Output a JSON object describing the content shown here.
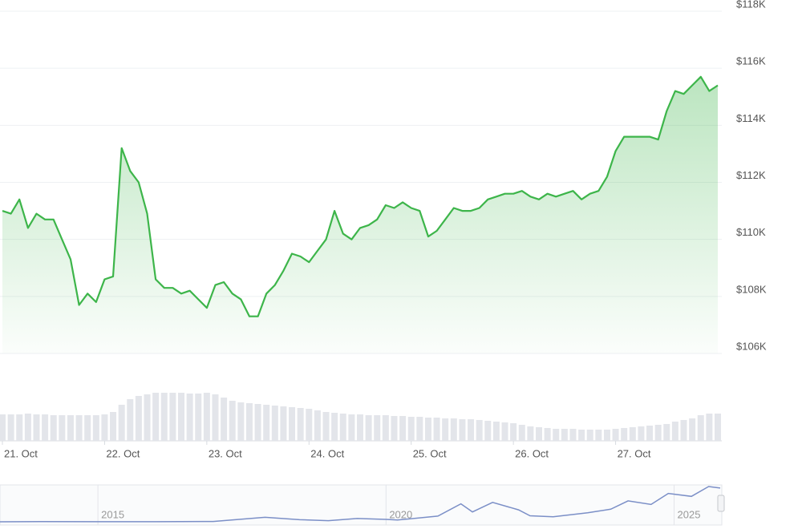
{
  "chart_data": [
    {
      "type": "line",
      "x": [
        0,
        2,
        4,
        6,
        8,
        10,
        12,
        14,
        16,
        18,
        20,
        22,
        24,
        26,
        28,
        30,
        32,
        34,
        36,
        38,
        40,
        42,
        44,
        46,
        48,
        50,
        52,
        54,
        56,
        58,
        60,
        62,
        64,
        66,
        68,
        70,
        72,
        74,
        76,
        78,
        80,
        82,
        84,
        86,
        88,
        90,
        92,
        94,
        96,
        98,
        100,
        102,
        104,
        106,
        108,
        110,
        112,
        114,
        116,
        118,
        120,
        122,
        124,
        126,
        128,
        130,
        132,
        134,
        136,
        138,
        140,
        142,
        144,
        146,
        148,
        150,
        152,
        154,
        156,
        158,
        160,
        162,
        164,
        166,
        168
      ],
      "values": [
        111000,
        110900,
        111400,
        110400,
        110900,
        110700,
        110700,
        110000,
        109300,
        107700,
        108100,
        107800,
        108600,
        108700,
        113200,
        112400,
        112000,
        110900,
        108600,
        108300,
        108300,
        108100,
        108200,
        107900,
        107600,
        108400,
        108500,
        108100,
        107900,
        107300,
        107300,
        108100,
        108400,
        108900,
        109500,
        109400,
        109200,
        109600,
        110000,
        111000,
        110200,
        110000,
        110400,
        110500,
        110700,
        111200,
        111100,
        111300,
        111100,
        111000,
        110100,
        110300,
        110700,
        111100,
        111000,
        111000,
        111100,
        111400,
        111500,
        111600,
        111600,
        111700,
        111500,
        111400,
        111600,
        111500,
        111600,
        111700,
        111400,
        111600,
        111700,
        112200,
        113100,
        113600,
        113600,
        113600,
        113600,
        113500,
        114500,
        115200,
        115100,
        115400,
        115700,
        115200,
        115400
      ],
      "color": "#3db54a",
      "xlim": [
        0,
        168
      ],
      "xticks": [
        {
          "value": 0,
          "label": "21. Oct"
        },
        {
          "value": 24,
          "label": "22. Oct"
        },
        {
          "value": 48,
          "label": "23. Oct"
        },
        {
          "value": 72,
          "label": "24. Oct"
        },
        {
          "value": 96,
          "label": "25. Oct"
        },
        {
          "value": 120,
          "label": "26. Oct"
        },
        {
          "value": 144,
          "label": "27. Oct"
        }
      ],
      "ylim": [
        106000,
        118000
      ],
      "yticks": [
        {
          "value": 106000,
          "label": "$106K"
        },
        {
          "value": 108000,
          "label": "$108K"
        },
        {
          "value": 110000,
          "label": "$110K"
        },
        {
          "value": 112000,
          "label": "$112K"
        },
        {
          "value": 114000,
          "label": "$114K"
        },
        {
          "value": 116000,
          "label": "$116K"
        },
        {
          "value": 118000,
          "label": "$118K"
        }
      ],
      "grid": true
    },
    {
      "type": "bar",
      "x": [
        0,
        2,
        4,
        6,
        8,
        10,
        12,
        14,
        16,
        18,
        20,
        22,
        24,
        26,
        28,
        30,
        32,
        34,
        36,
        38,
        40,
        42,
        44,
        46,
        48,
        50,
        52,
        54,
        56,
        58,
        60,
        62,
        64,
        66,
        68,
        70,
        72,
        74,
        76,
        78,
        80,
        82,
        84,
        86,
        88,
        90,
        92,
        94,
        96,
        98,
        100,
        102,
        104,
        106,
        108,
        110,
        112,
        114,
        116,
        118,
        120,
        122,
        124,
        126,
        128,
        130,
        132,
        134,
        136,
        138,
        140,
        142,
        144,
        146,
        148,
        150,
        152,
        154,
        156,
        158,
        160,
        162,
        164,
        166,
        168
      ],
      "values": [
        33,
        33,
        33,
        34,
        33,
        33,
        32,
        32,
        32,
        32,
        32,
        32,
        33,
        36,
        45,
        52,
        56,
        58,
        60,
        60,
        60,
        60,
        59,
        59,
        60,
        58,
        54,
        50,
        48,
        47,
        46,
        45,
        44,
        43,
        42,
        41,
        40,
        38,
        36,
        35,
        34,
        33,
        33,
        32,
        32,
        32,
        31,
        31,
        30,
        30,
        29,
        29,
        28,
        28,
        27,
        27,
        26,
        25,
        24,
        23,
        22,
        20,
        18,
        17,
        16,
        15,
        15,
        15,
        14,
        14,
        14,
        14,
        15,
        16,
        17,
        18,
        19,
        20,
        21,
        24,
        26,
        28,
        32,
        34,
        34
      ],
      "color": "#e3e5ea",
      "xlim": [
        0,
        168
      ]
    },
    {
      "type": "line",
      "x": [
        2013.3,
        2014,
        2015,
        2016,
        2017,
        2017.9,
        2018.5,
        2019,
        2019.5,
        2020,
        2020.2,
        2020.9,
        2021.3,
        2021.5,
        2021.85,
        2022.3,
        2022.5,
        2022.9,
        2023.5,
        2023.9,
        2024.2,
        2024.6,
        2024.9,
        2025.3,
        2025.6,
        2025.8
      ],
      "values": [
        100,
        600,
        250,
        400,
        1000,
        15000,
        7000,
        3700,
        11000,
        8000,
        6000,
        19000,
        60000,
        33000,
        65000,
        40000,
        20000,
        16500,
        30000,
        42000,
        70000,
        58000,
        95000,
        85000,
        118000,
        113000
      ],
      "color": "#7b8fc7",
      "xlim": [
        2013.3,
        2025.8
      ],
      "xticks": [
        2015,
        2020,
        2025
      ]
    }
  ]
}
